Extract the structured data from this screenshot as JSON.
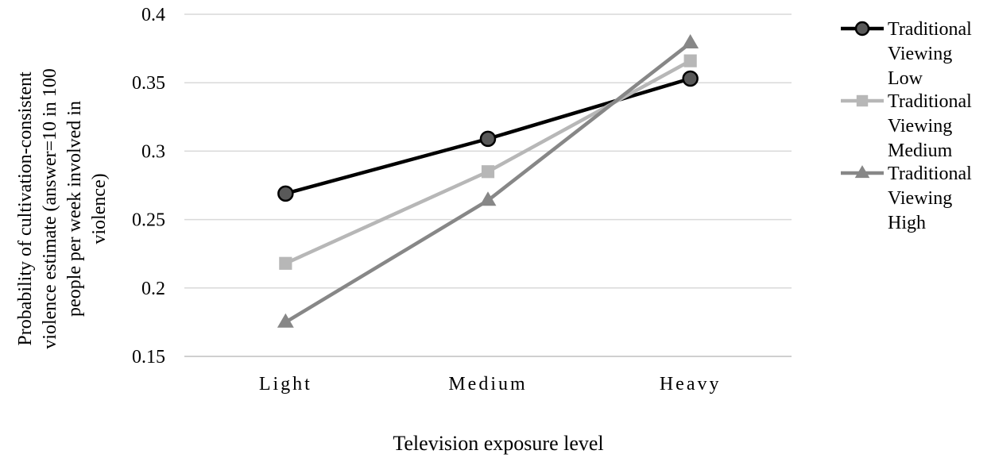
{
  "chart_data": {
    "type": "line",
    "categories": [
      "Light",
      "Medium",
      "Heavy"
    ],
    "series": [
      {
        "name": "Traditional Viewing Low",
        "legend_lines": [
          "Traditional",
          "Viewing",
          "Low"
        ],
        "values": [
          0.269,
          0.309,
          0.353
        ],
        "color": "#000000",
        "marker": "circle"
      },
      {
        "name": "Traditional Viewing Medium",
        "legend_lines": [
          "Traditional",
          "Viewing",
          "Medium"
        ],
        "values": [
          0.218,
          0.285,
          0.366
        ],
        "color": "#b7b7b7",
        "marker": "square"
      },
      {
        "name": "Traditional Viewing High",
        "legend_lines": [
          "Traditional",
          "Viewing",
          "High"
        ],
        "values": [
          0.175,
          0.264,
          0.379
        ],
        "color": "#878787",
        "marker": "triangle"
      }
    ],
    "ylim": [
      0.15,
      0.4
    ],
    "yticks": [
      "0.15",
      "0.2",
      "0.25",
      "0.3",
      "0.35",
      "0.4"
    ],
    "xlabel": "Television exposure level",
    "ylabel_lines": [
      "Probability of cultivation-consistent",
      "violence estimate (answer=10 in 100",
      "people per week involved in",
      "violence)"
    ],
    "grid": true,
    "legend_position": "right"
  }
}
